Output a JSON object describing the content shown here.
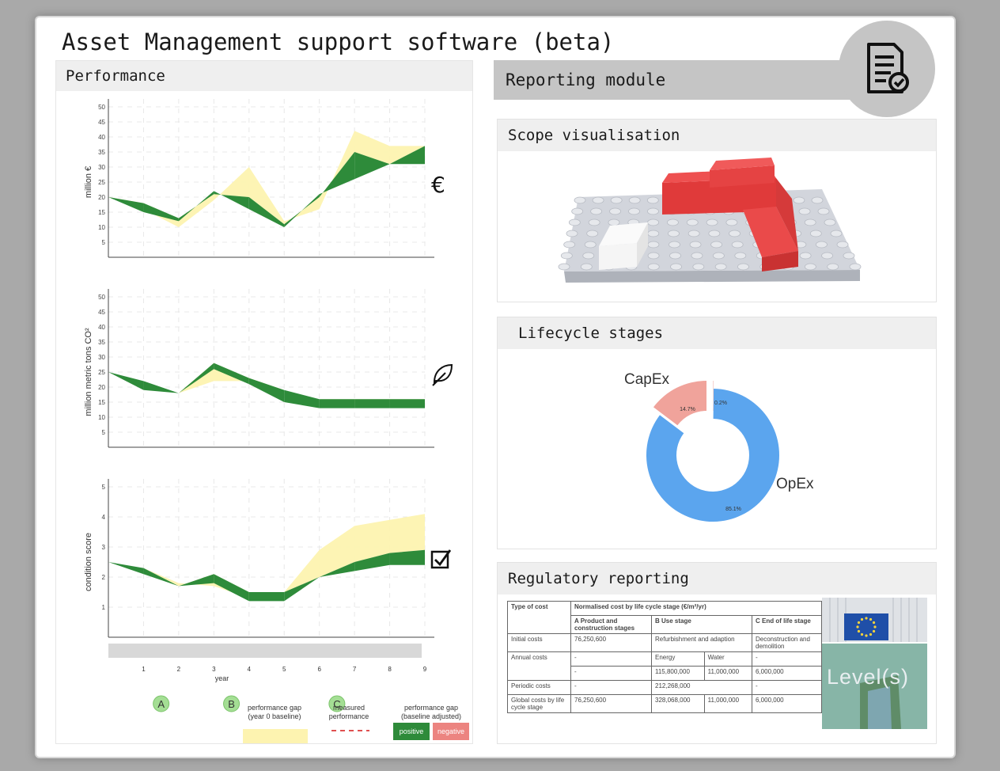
{
  "app": {
    "title": "Asset Management support software (beta)"
  },
  "performance": {
    "title": "Performance",
    "charts": [
      {
        "id": "cost",
        "ylabel": "million €",
        "ticks": [
          "5",
          "10",
          "15",
          "20",
          "25",
          "30",
          "35",
          "40",
          "45",
          "50"
        ],
        "icon": "euro-icon",
        "icon_glyph": "€"
      },
      {
        "id": "co2",
        "ylabel": "million metric tons CO²",
        "ticks": [
          "5",
          "10",
          "15",
          "20",
          "25",
          "30",
          "35",
          "40",
          "45",
          "50"
        ],
        "icon": "leaf-icon"
      },
      {
        "id": "condition",
        "ylabel": "condition score",
        "ticks": [
          "1",
          "2",
          "3",
          "4",
          "5"
        ],
        "icon": "checkbox-icon"
      }
    ],
    "xaxis": {
      "label": "year",
      "ticks": [
        "1",
        "2",
        "3",
        "4",
        "5",
        "6",
        "7",
        "8",
        "9"
      ]
    },
    "markers": [
      "A",
      "B",
      "C"
    ],
    "legend": {
      "gap_baseline": "performance gap\n(year 0 baseline)",
      "measured": "measured\nperformance",
      "gap_adjusted": "performance gap\n(baseline adjusted)",
      "positive": "positive",
      "negative": "negative"
    },
    "colors": {
      "positive": "#2e8b3a",
      "negative": "#ec8480",
      "gap": "#fdf3b0",
      "marker": "#a4de94",
      "measured": "#e05050"
    }
  },
  "chart_data": [
    {
      "type": "area",
      "title": "",
      "ylabel": "million €",
      "xlabel": "year",
      "ylim": [
        0,
        50
      ],
      "x": [
        0,
        1,
        2,
        3,
        4,
        5,
        6,
        7,
        8,
        9
      ],
      "series": [
        {
          "values": [
            20,
            18,
            13,
            21,
            20,
            11,
            20,
            35,
            31,
            37
          ]
        },
        {
          "values": [
            20,
            15,
            12,
            22,
            16,
            10,
            21,
            26,
            31,
            31
          ]
        },
        {
          "values": [
            20,
            16,
            10,
            19,
            30,
            12,
            16,
            42,
            37,
            37
          ]
        }
      ]
    },
    {
      "type": "area",
      "title": "",
      "ylabel": "million metric tons CO²",
      "xlabel": "year",
      "ylim": [
        0,
        50
      ],
      "x": [
        0,
        1,
        2,
        3,
        4,
        5,
        6,
        7,
        8,
        9
      ],
      "series": [
        {
          "values": [
            25,
            22,
            18,
            28,
            23,
            19,
            16,
            16,
            16,
            16
          ]
        },
        {
          "values": [
            25,
            19,
            18,
            26,
            21,
            15,
            13,
            13,
            13,
            13
          ]
        },
        {
          "values": [
            25,
            22,
            18,
            22,
            22,
            19,
            16,
            15,
            15,
            15
          ]
        }
      ]
    },
    {
      "type": "area",
      "title": "",
      "ylabel": "condition score",
      "xlabel": "year",
      "ylim": [
        0,
        5
      ],
      "x": [
        0,
        1,
        2,
        3,
        4,
        5,
        6,
        7,
        8,
        9
      ],
      "series": [
        {
          "values": [
            2.5,
            2.3,
            1.7,
            2.1,
            1.5,
            1.5,
            2.0,
            2.5,
            2.8,
            2.9
          ]
        },
        {
          "values": [
            2.5,
            2.1,
            1.7,
            1.8,
            1.2,
            1.2,
            2.0,
            2.2,
            2.4,
            2.4
          ]
        },
        {
          "values": [
            2.5,
            2.3,
            1.8,
            1.7,
            1.3,
            1.5,
            2.9,
            3.7,
            3.9,
            4.1
          ]
        }
      ]
    },
    {
      "type": "pie",
      "title": "",
      "categories": [
        "CapEx",
        "OpEx",
        ""
      ],
      "values": [
        14.7,
        85.1,
        0.2
      ],
      "data_labels": [
        "14.7%",
        "85.1%",
        "0.2%"
      ]
    }
  ],
  "reporting": {
    "title": "Reporting module",
    "icon": "report-icon",
    "scope": {
      "title": "Scope visualisation"
    },
    "lifecycle": {
      "title": "Lifecycle stages",
      "capex_label": "CapEx",
      "opex_label": "OpEx",
      "capex_pct": "14.7%",
      "opex_pct": "85.1%",
      "other_pct": "0.2%",
      "colors": {
        "capex": "#f0a39b",
        "opex": "#5ba5ee"
      }
    },
    "regulatory": {
      "title": "Regulatory reporting",
      "table": {
        "col0": "Type of cost",
        "span_header": "Normalised cost by life cycle stage (€/m²/yr)",
        "h_a": "A Product and construction stages",
        "h_b": "B Use stage",
        "h_c": "C End of life stage",
        "initial_label": "Initial costs",
        "initial_a": "76,250,600",
        "initial_b": "Refurbishment and adaption",
        "initial_c": "Deconstruction and demolition",
        "annual_label": "Annual costs",
        "annual_a": "-",
        "annual_b1": "Energy",
        "annual_b2": "Water",
        "annual_c": "-",
        "annual2_a": "-",
        "annual2_b1": "115,800,000",
        "annual2_b2": "11,000,000",
        "annual2_c": "6,000,000",
        "periodic_label": "Periodic costs",
        "periodic_a": "-",
        "periodic_b": "212,268,000",
        "periodic_c": "-",
        "global_label": "Global costs by life cycle stage",
        "global_a": "76,250,600",
        "global_b1": "328,068,000",
        "global_b2": "11,000,000",
        "global_c": "6,000,000"
      },
      "levels_label": "Level(s)"
    }
  }
}
